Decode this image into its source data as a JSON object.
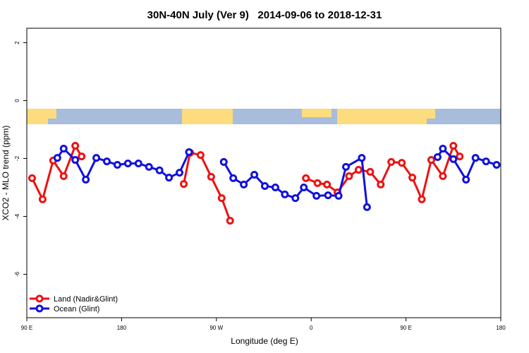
{
  "chart_data": {
    "type": "line",
    "title": "30N-40N July (Ver 9)   2014-09-06 to 2018-12-31",
    "x_label": "Longitude (deg E)",
    "y_label": "XCO2 - MLO trend (ppm)",
    "xlim": [
      90,
      540
    ],
    "ylim": [
      -7.5,
      2.5
    ],
    "xticks": [
      {
        "value": 90,
        "label": "90 E"
      },
      {
        "value": 180,
        "label": "180"
      },
      {
        "value": 270,
        "label": "90 W"
      },
      {
        "value": 360,
        "label": "0"
      },
      {
        "value": 450,
        "label": "90 E"
      },
      {
        "value": 540,
        "label": "180"
      }
    ],
    "yticks": [
      2,
      0,
      -2,
      -4,
      -6
    ],
    "legend": "bottom-left",
    "series": [
      {
        "name": "Land (Nadir&Glint)",
        "color": "#ee1111",
        "x": [
          95,
          105,
          115,
          125,
          136,
          142,
          null,
          239,
          245,
          255,
          265,
          275,
          283,
          null,
          355,
          366,
          375,
          385,
          396,
          405,
          416,
          426,
          436,
          446,
          456,
          465,
          474,
          485,
          495,
          501
        ],
        "values": [
          -2.68,
          -3.41,
          -2.07,
          -2.61,
          -1.56,
          -1.93,
          null,
          -2.88,
          -1.8,
          -1.88,
          -2.63,
          -3.37,
          -4.15,
          null,
          -2.68,
          -2.85,
          -2.9,
          -3.17,
          -2.61,
          -2.39,
          -2.46,
          -2.9,
          -2.12,
          -2.15,
          -2.66,
          -3.41,
          -2.05,
          -2.61,
          -1.56,
          -1.93
        ]
      },
      {
        "name": "Ocean (Glint)",
        "color": "#1111dd",
        "x": [
          119,
          125,
          136,
          146,
          156,
          166,
          176,
          186,
          196,
          206,
          216,
          225,
          235,
          244,
          null,
          277,
          286,
          296,
          306,
          316,
          326,
          335,
          345,
          353,
          365,
          376,
          386,
          393,
          408,
          413,
          null,
          480,
          485,
          495,
          507,
          516,
          526,
          536
        ],
        "values": [
          -1.98,
          -1.66,
          -2.05,
          -2.73,
          -1.98,
          -2.1,
          -2.22,
          -2.17,
          -2.17,
          -2.29,
          -2.41,
          -2.66,
          -2.49,
          -1.78,
          null,
          -2.12,
          -2.68,
          -2.9,
          -2.56,
          -2.95,
          -3.0,
          -3.24,
          -3.37,
          -3.0,
          -3.29,
          -3.27,
          -3.29,
          -2.29,
          -1.98,
          -3.68,
          null,
          -1.95,
          -1.66,
          -2.02,
          -2.73,
          -1.98,
          -2.1,
          -2.22
        ]
      }
    ]
  }
}
